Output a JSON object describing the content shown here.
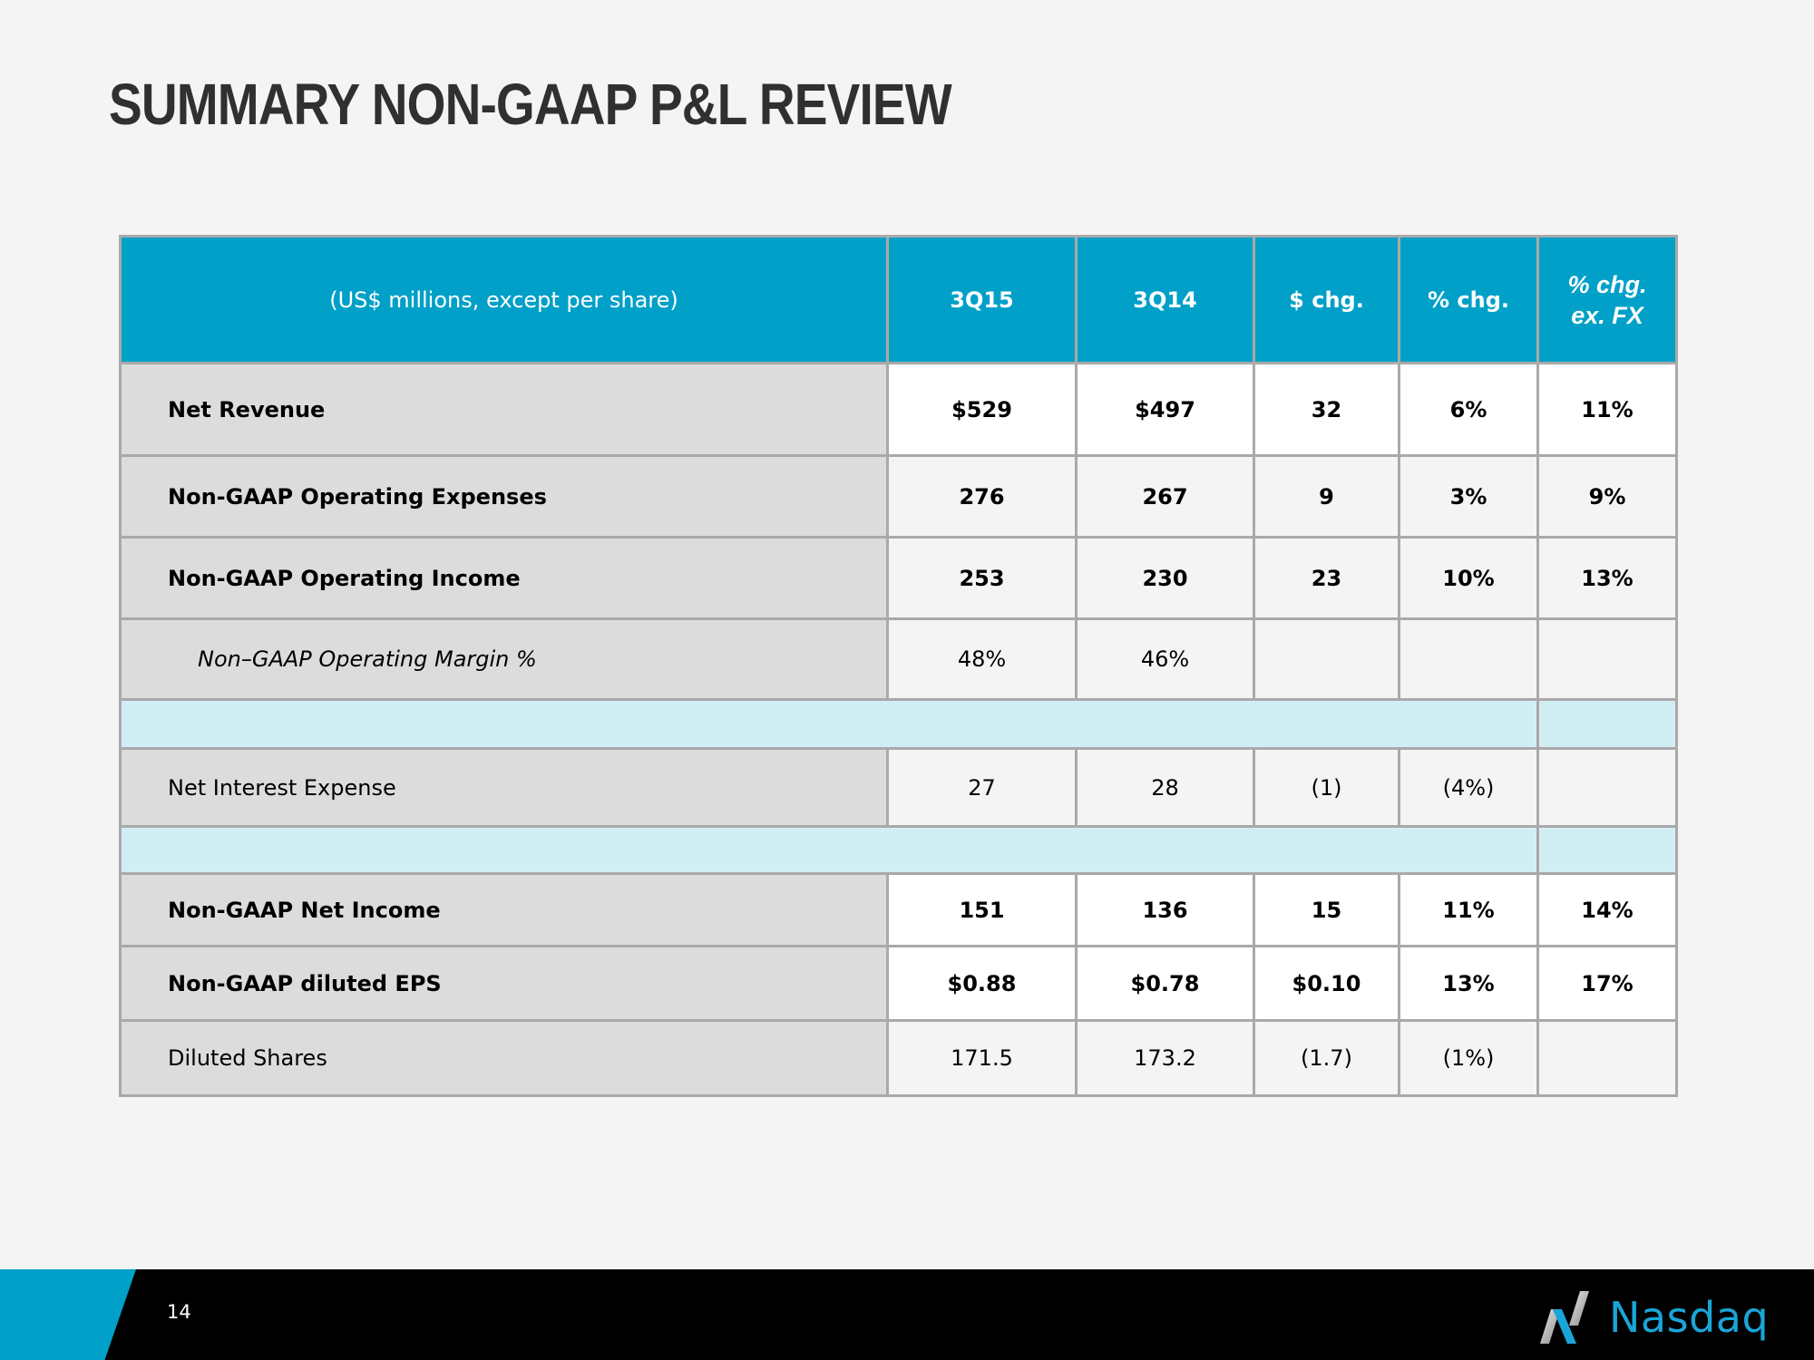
{
  "title": "SUMMARY NON-GAAP P&L REVIEW",
  "table": {
    "headers": {
      "units": "(US$ millions, except per share)",
      "q1": "3Q15",
      "q2": "3Q14",
      "dollar_chg": "$ chg.",
      "pct_chg": "% chg.",
      "pct_chg_exfx_line1": "% chg.",
      "pct_chg_exfx_line2": "ex. FX"
    },
    "rows": [
      {
        "label": "Net Revenue",
        "q1": "$529",
        "q2": "$497",
        "dollar_chg": "32",
        "pct_chg": "6%",
        "pct_chg_exfx": "11%"
      },
      {
        "label": "Non-GAAP Operating Expenses",
        "q1": "276",
        "q2": "267",
        "dollar_chg": "9",
        "pct_chg": "3%",
        "pct_chg_exfx": "9%"
      },
      {
        "label": "Non-GAAP Operating Income",
        "q1": "253",
        "q2": "230",
        "dollar_chg": "23",
        "pct_chg": "10%",
        "pct_chg_exfx": "13%"
      },
      {
        "label": "Non–GAAP Operating Margin %",
        "q1": "48%",
        "q2": "46%",
        "dollar_chg": "",
        "pct_chg": "",
        "pct_chg_exfx": ""
      },
      {
        "label": "Net Interest Expense",
        "q1": "27",
        "q2": "28",
        "dollar_chg": "(1)",
        "pct_chg": "(4%)",
        "pct_chg_exfx": ""
      },
      {
        "label": "Non-GAAP Net Income",
        "q1": "151",
        "q2": "136",
        "dollar_chg": "15",
        "pct_chg": "11%",
        "pct_chg_exfx": "14%"
      },
      {
        "label": "Non-GAAP diluted EPS",
        "q1": "$0.88",
        "q2": "$0.78",
        "dollar_chg": "$0.10",
        "pct_chg": "13%",
        "pct_chg_exfx": "17%"
      },
      {
        "label": "Diluted Shares",
        "q1": "171.5",
        "q2": "173.2",
        "dollar_chg": "(1.7)",
        "pct_chg": "(1%)",
        "pct_chg_exfx": ""
      }
    ]
  },
  "footer": {
    "page_number": "14",
    "logo_text": "Nasdaq"
  },
  "colors": {
    "header_blue": "#00a0c8",
    "spacer_blue": "#d2eef5",
    "label_gray": "#dcdcdc",
    "footer_black": "#000000",
    "logo_blue": "#1aa5d8"
  }
}
